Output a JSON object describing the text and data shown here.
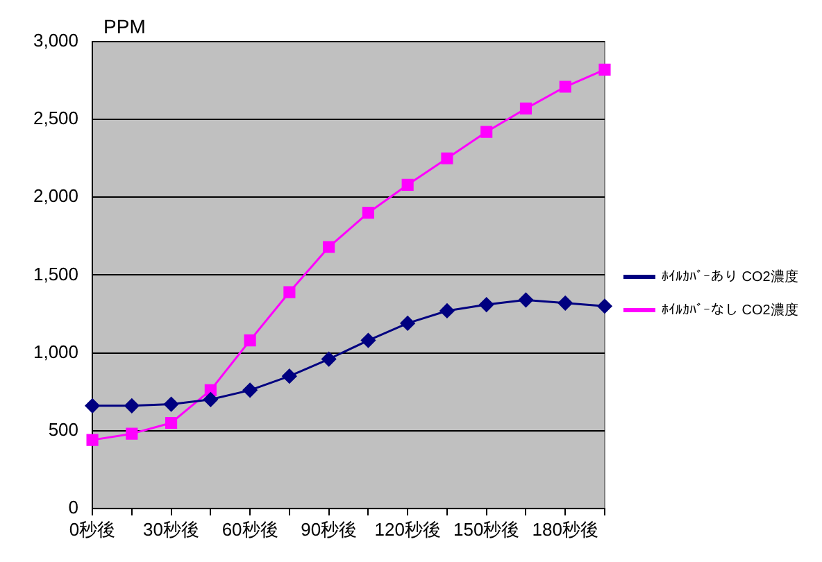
{
  "chart_data": {
    "type": "line",
    "ylabel": "PPM",
    "categories": [
      "0秒後",
      null,
      "30秒後",
      null,
      "60秒後",
      null,
      "90秒後",
      null,
      "120秒後",
      null,
      "150秒後",
      null,
      "180秒後",
      null
    ],
    "series": [
      {
        "name": "ﾎｲﾙｶﾊﾞｰあり CO2濃度",
        "color": "#000080",
        "marker": "diamond",
        "values": [
          660,
          660,
          670,
          700,
          760,
          850,
          960,
          1080,
          1190,
          1270,
          1310,
          1340,
          1320,
          1300
        ]
      },
      {
        "name": "ﾎｲﾙｶﾊﾞｰなし CO2濃度",
        "color": "#ff00ff",
        "marker": "square",
        "values": [
          440,
          480,
          550,
          760,
          1080,
          1390,
          1680,
          1900,
          2080,
          2250,
          2420,
          2570,
          2710,
          2820
        ]
      }
    ],
    "ylim": [
      0,
      3000
    ],
    "yticks": [
      0,
      500,
      {
        "value": 1000,
        "label": "1,000"
      },
      {
        "value": 1500,
        "label": "1,500"
      },
      {
        "value": 2000,
        "label": "2,000"
      },
      {
        "value": 2500,
        "label": "2,500"
      },
      {
        "value": 3000,
        "label": "3,000"
      }
    ],
    "grid": "y",
    "legend": "right",
    "line_style": "solid"
  }
}
